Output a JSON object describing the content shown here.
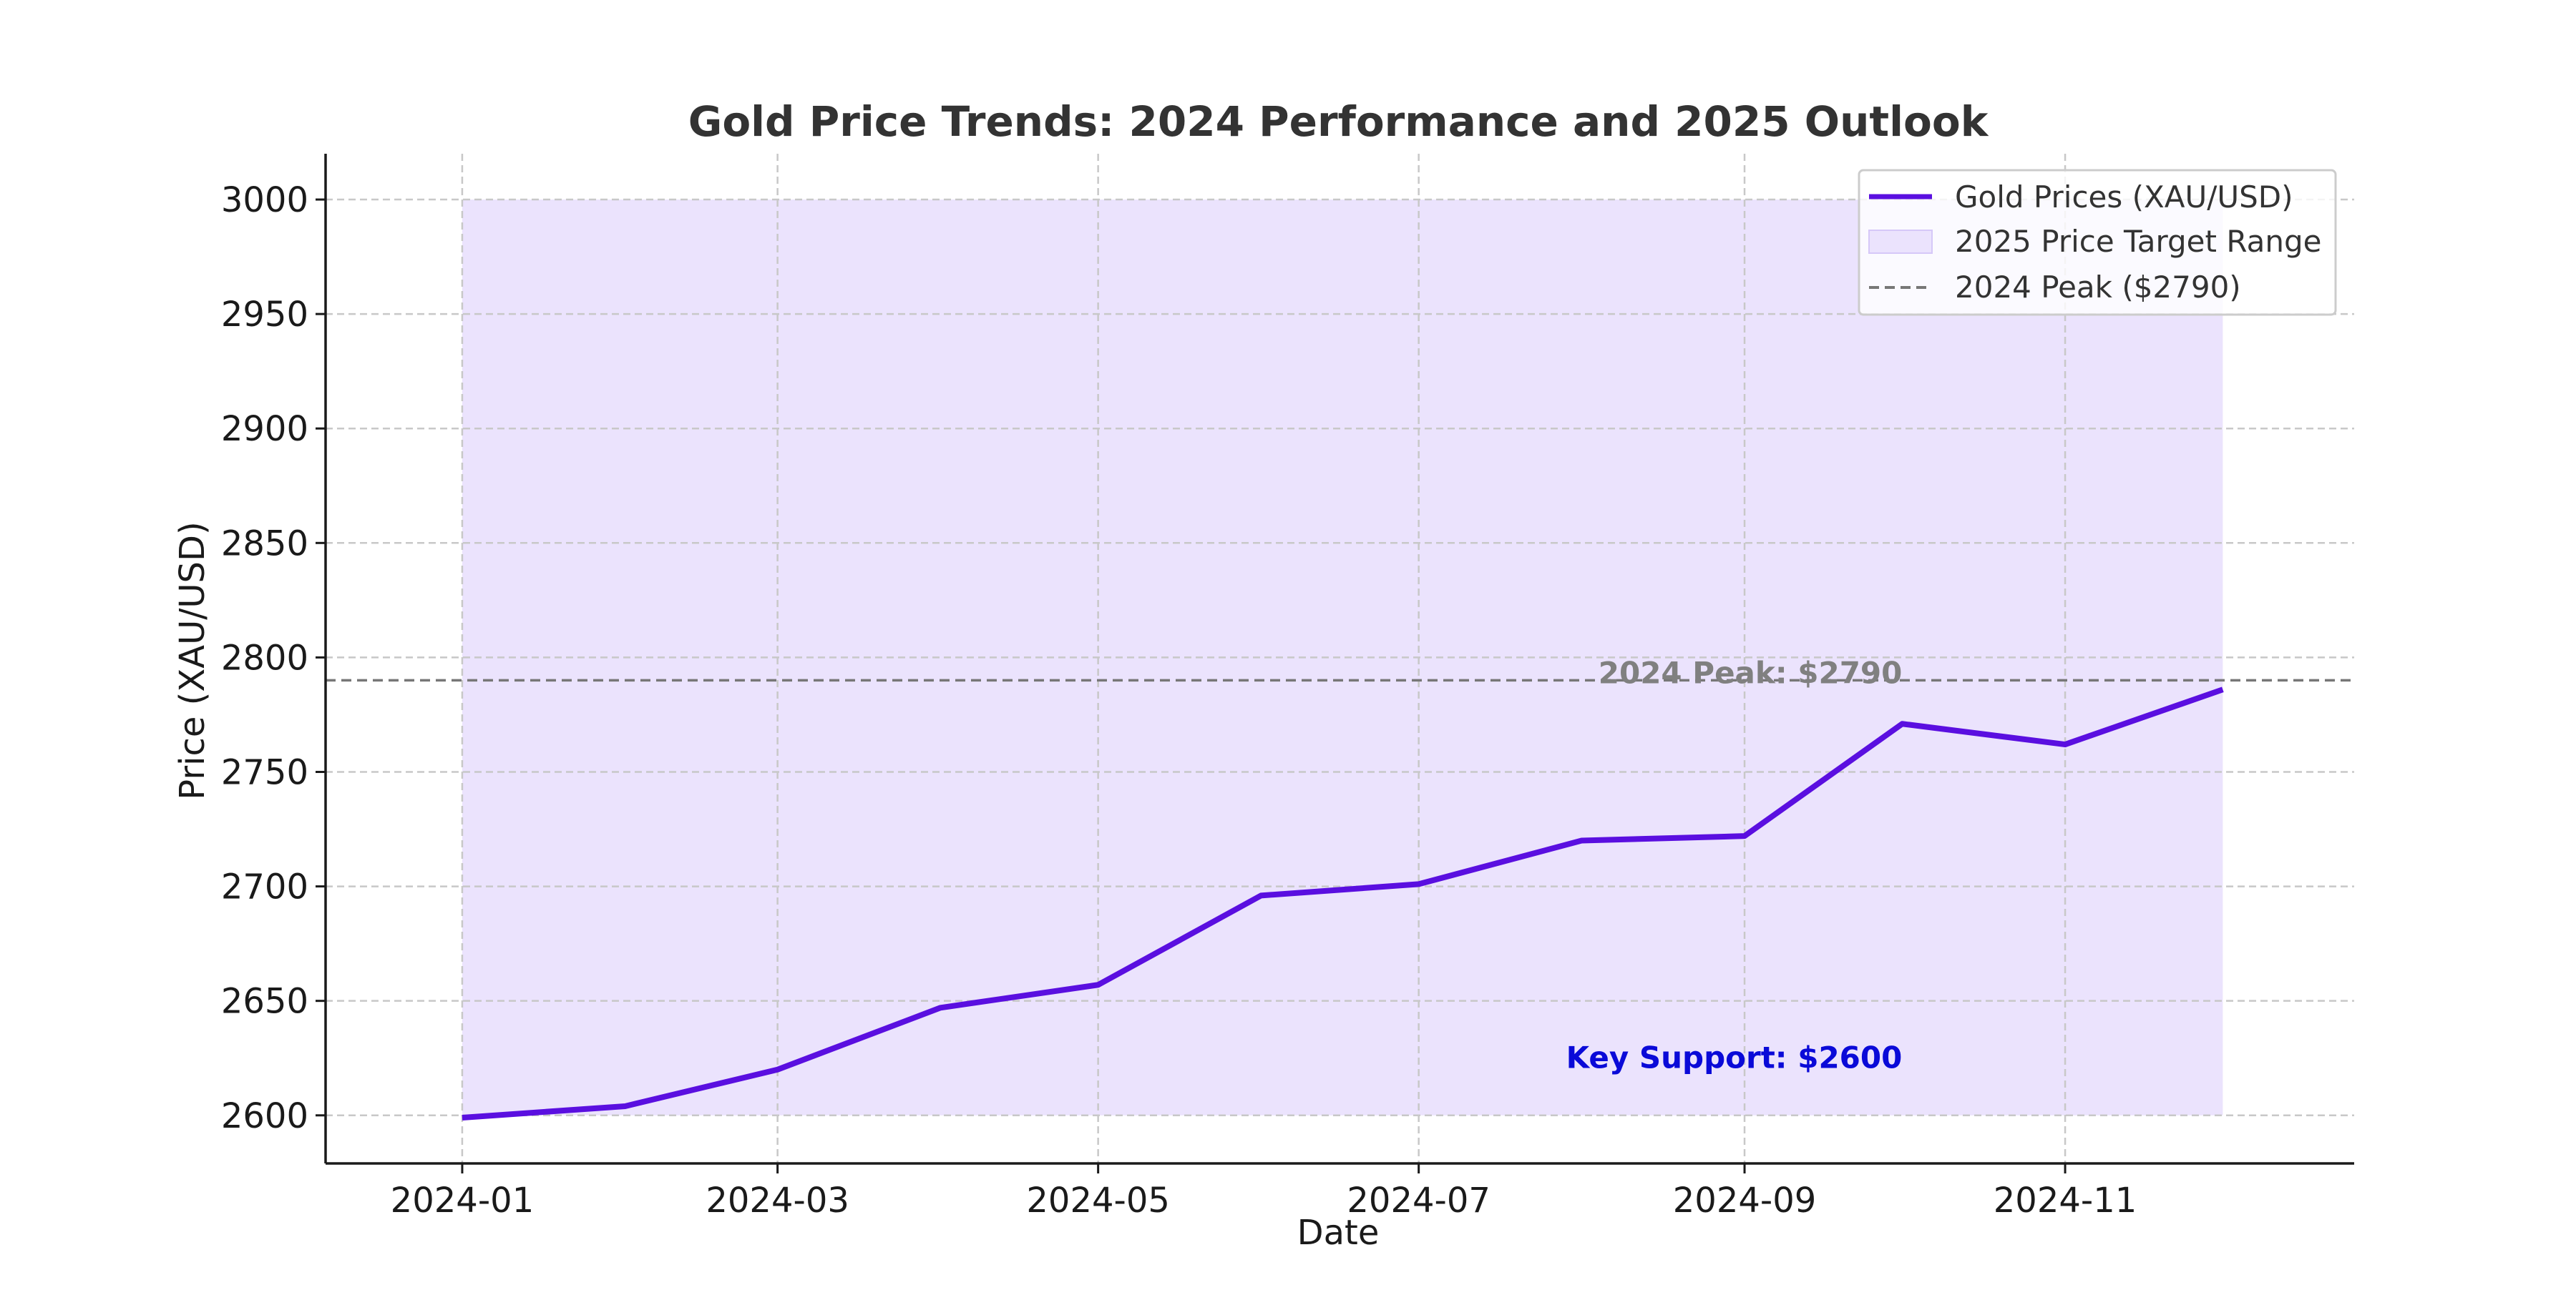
{
  "chart_data": {
    "type": "line",
    "title": "Gold Price Trends: 2024 Performance and 2025 Outlook",
    "xlabel": "Date",
    "ylabel": "Price (XAU/USD)",
    "x": [
      "2024-01-01",
      "2024-02-01",
      "2024-03-01",
      "2024-04-01",
      "2024-05-01",
      "2024-06-01",
      "2024-07-01",
      "2024-08-01",
      "2024-09-01",
      "2024-10-01",
      "2024-11-01",
      "2024-12-01"
    ],
    "series": [
      {
        "name": "Gold Prices (XAU/USD)",
        "values": [
          2599,
          2604,
          2620,
          2647,
          2657,
          2696,
          2701,
          2720,
          2722,
          2771,
          2762,
          2786
        ],
        "color": "#5a0fe0"
      }
    ],
    "band": {
      "name": "2025 Price Target Range",
      "ymin": 2600,
      "ymax": 3000,
      "x_start": "2024-01-01",
      "x_end": "2024-12-01",
      "color": "#ebe3fd"
    },
    "reference_line": {
      "name": "2024 Peak ($2790)",
      "y": 2790,
      "color": "#777777",
      "style": "dashed"
    },
    "annotations": [
      {
        "text": "2024 Peak: $2790",
        "x": "2024-10-01",
        "y": 2790,
        "color": "#808080"
      },
      {
        "text": "Key Support: $2600",
        "x": "2024-10-01",
        "y": 2622,
        "color": "#0a0ad8"
      }
    ],
    "x_ticks": [
      "2024-01",
      "2024-03",
      "2024-05",
      "2024-07",
      "2024-09",
      "2024-11"
    ],
    "y_ticks": [
      2600,
      2650,
      2700,
      2750,
      2800,
      2850,
      2900,
      2950,
      3000
    ],
    "xlim": [
      "2023-12-06",
      "2024-12-26"
    ],
    "ylim": [
      2579,
      3020
    ],
    "grid": true,
    "legend_position": "top-right",
    "legend": [
      "Gold Prices (XAU/USD)",
      "2025 Price Target Range",
      "2024 Peak ($2790)"
    ]
  }
}
